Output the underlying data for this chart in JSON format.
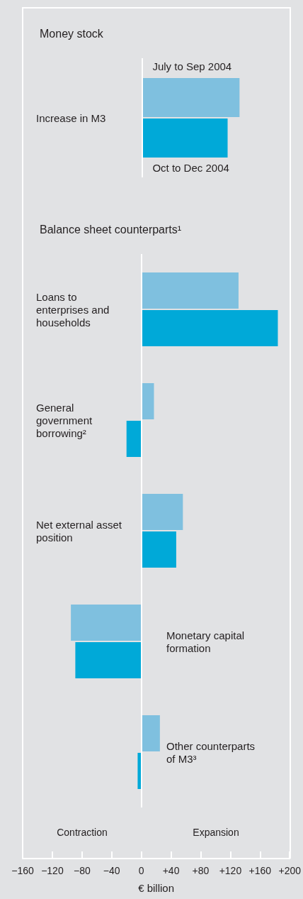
{
  "chart_data": [
    {
      "type": "bar",
      "orientation": "horizontal",
      "title": "Money stock",
      "categories": [
        "Increase in M3"
      ],
      "series": [
        {
          "name": "July to Sep 2004",
          "color": "#7fc0df",
          "values": [
            131
          ]
        },
        {
          "name": "Oct to Dec 2004",
          "color": "#00a9d8",
          "values": [
            115
          ]
        }
      ],
      "xlim": [
        -160,
        200
      ],
      "tick_labels": "y",
      "ref_lines": [
        {
          "axis": "x",
          "value": 0,
          "color": "#ffffff"
        }
      ]
    },
    {
      "type": "bar",
      "orientation": "horizontal",
      "title": "Balance sheet counterparts¹",
      "xlabel": "€ billion",
      "categories": [
        "Loans to enterprises and households",
        "General government borrowing²",
        "Net external asset position",
        "Monetary capital formation",
        "Other counterparts of M3³"
      ],
      "series": [
        {
          "color": "#7fc0df",
          "values": [
            131,
            17,
            56,
            -95,
            25
          ]
        },
        {
          "color": "#00a9d8",
          "values": [
            184,
            -20,
            47,
            -89,
            -5
          ]
        }
      ],
      "xlim": [
        -160,
        200
      ],
      "ref_lines": [
        {
          "axis": "x",
          "value": 0,
          "color": "#ffffff"
        }
      ],
      "xticks": [
        {
          "value": -160,
          "label": "−160"
        },
        {
          "value": -120,
          "label": "−120"
        },
        {
          "value": -80,
          "label": "−80"
        },
        {
          "value": -40,
          "label": "−40"
        },
        0,
        {
          "value": 40,
          "label": "+40"
        },
        {
          "value": 80,
          "label": "+80"
        },
        {
          "value": 120,
          "label": "+120"
        },
        {
          "value": 160,
          "label": "+160"
        },
        {
          "value": 200,
          "label": "+200"
        }
      ],
      "annotations": [
        "Contraction",
        "Expansion"
      ]
    }
  ]
}
